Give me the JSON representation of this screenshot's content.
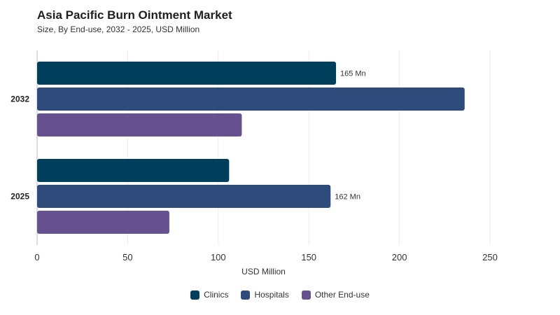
{
  "chart_data": {
    "type": "bar",
    "orientation": "horizontal",
    "title": "Asia Pacific Burn Ointment Market",
    "subtitle": "Size, By End-use, 2032 - 2025, USD Million",
    "xlabel": "USD Million",
    "ylabel": "",
    "xlim": [
      0,
      250
    ],
    "xticks": [
      0,
      50,
      100,
      150,
      200,
      250
    ],
    "categories": [
      "2032",
      "2025"
    ],
    "series": [
      {
        "name": "Clinics",
        "values": [
          165,
          106
        ],
        "color": "#003f5c"
      },
      {
        "name": "Hospitals",
        "values": [
          236,
          162
        ],
        "color": "#2f4b7c"
      },
      {
        "name": "Other End-use",
        "values": [
          113,
          73
        ],
        "color": "#665191"
      }
    ],
    "data_labels": [
      {
        "category": "2032",
        "series": "Clinics",
        "text": "165 Mn"
      },
      {
        "category": "2025",
        "series": "Hospitals",
        "text": "162 Mn"
      }
    ],
    "grid": true,
    "legend_position": "bottom-center"
  }
}
